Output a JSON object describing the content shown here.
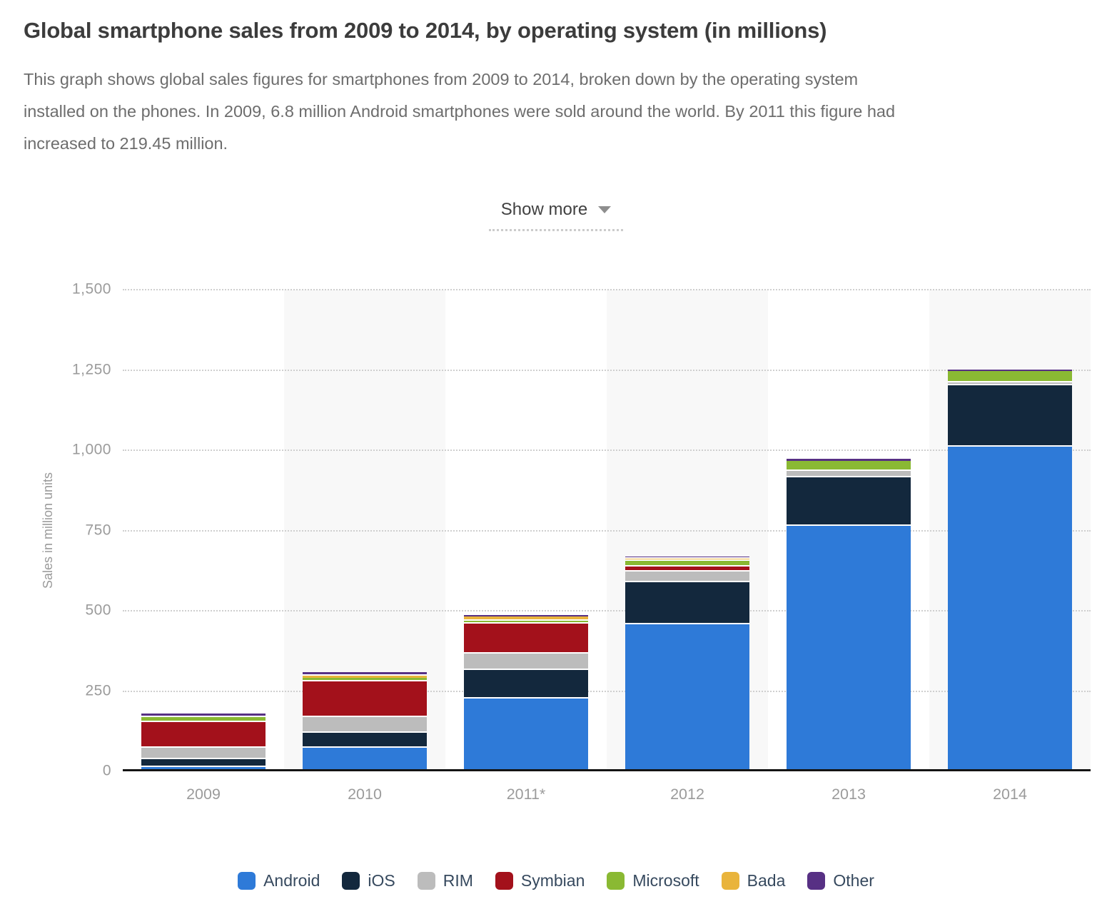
{
  "page": {
    "title": "Global smartphone sales from 2009 to 2014, by operating system (in millions)",
    "description": "This graph shows global sales figures for smartphones from 2009 to 2014, broken down by the operating system installed on the phones. In 2009, 6.8 million Android smartphones were sold around the world. By 2011 this figure had increased to 219.45 million.",
    "description_lines": [
      "This graph shows global sales figures for smartphones from 2009 to 2014, broken down by the operating system",
      "installed on the phones. In 2009, 6.8 million Android smartphones were sold around the world. By 2011 this figure had",
      "increased to 219.45 million."
    ],
    "show_more_label": "Show more"
  },
  "chart_data": {
    "type": "bar",
    "stacked": true,
    "title": "Global smartphone sales from 2009 to 2014, by operating system (in millions)",
    "xlabel": "",
    "ylabel": "Sales in million units",
    "categories": [
      "2009",
      "2010",
      "2011*",
      "2012",
      "2013",
      "2014"
    ],
    "series": [
      {
        "name": "Android",
        "color": "#2e7ad8",
        "values": [
          6.8,
          67.22,
          219.45,
          451.62,
          758.72,
          1004.68
        ]
      },
      {
        "name": "iOS",
        "color": "#13283d",
        "values": [
          24.89,
          46.6,
          89.26,
          130.13,
          150.79,
          191.43
        ]
      },
      {
        "name": "RIM",
        "color": "#bcbcbc",
        "values": [
          34.35,
          47.45,
          51.54,
          34.21,
          18.61,
          7.91
        ]
      },
      {
        "name": "Symbian",
        "color": "#a3111b",
        "values": [
          80.88,
          111.58,
          93.41,
          15.89,
          0.45,
          0
        ]
      },
      {
        "name": "Microsoft",
        "color": "#8ab933",
        "values": [
          15.03,
          12.38,
          8.77,
          16.94,
          30.84,
          35.13
        ]
      },
      {
        "name": "Bada",
        "color": "#e9b43c",
        "values": [
          0,
          4.95,
          13.62,
          7.48,
          0.84,
          0
        ]
      },
      {
        "name": "Other",
        "color": "#573084",
        "values": [
          10.43,
          11.42,
          3.12,
          6.77,
          5.97,
          5.74
        ]
      }
    ],
    "ylim": [
      0,
      1500
    ],
    "yticks": [
      0,
      250,
      500,
      750,
      1000,
      1250,
      1500
    ],
    "grid": "horizontal dotted",
    "plot_bands": "alternating light-gray vertical column bands (even columns)",
    "legend_position": "bottom",
    "colors": {
      "axis_labels": "#9b9b9b",
      "grid_dots": "#cfcfcf",
      "baseline": "#141414",
      "band": "#f8f8f8",
      "legend_text": "#36495e"
    }
  }
}
